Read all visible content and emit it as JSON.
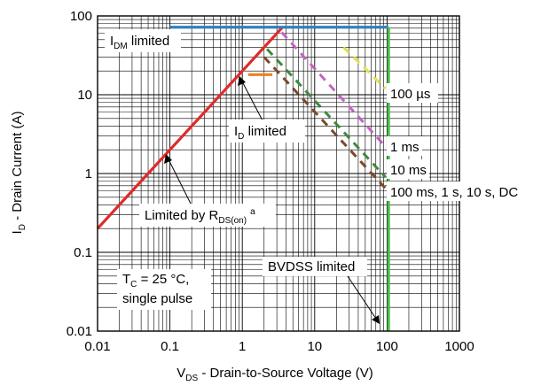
{
  "chart_data": {
    "type": "line",
    "x_scale": "log",
    "y_scale": "log",
    "xlim": [
      0.01,
      1000
    ],
    "ylim": [
      0.01,
      100
    ],
    "grid": true,
    "x_ticks": [
      "0.01",
      "0.1",
      "1",
      "10",
      "100",
      "1000"
    ],
    "y_ticks": [
      "100",
      "10",
      "1",
      "0.1",
      "0.01"
    ],
    "xlabel": {
      "main": "V",
      "sub": "DS",
      "rest": " - Drain-to-Source Voltage (V)"
    },
    "ylabel": {
      "main": "I",
      "sub": "D",
      "rest": " - Drain Current (A)"
    },
    "series": [
      {
        "color": "#e02a2a",
        "style": "solid",
        "x": [
          0.01,
          3.6
        ],
        "y": [
          0.2,
          72
        ]
      },
      {
        "color": "#2f7fc4",
        "style": "solid",
        "x": [
          0.1,
          105
        ],
        "y": [
          72,
          72
        ]
      },
      {
        "color": "#4cbf4c",
        "style": "solid",
        "x": [
          105,
          105
        ],
        "y": [
          72,
          0.01
        ]
      },
      {
        "color": "#f07f20",
        "style": "solid",
        "x": [
          1.2,
          2.6
        ],
        "y": [
          18,
          18
        ]
      },
      {
        "color": "#e2e04a",
        "style": "dashed",
        "x": [
          25,
          95
        ],
        "y": [
          40,
          12
        ]
      },
      {
        "color": "#c463c2",
        "style": "dashed",
        "x": [
          3.5,
          95
        ],
        "y": [
          62,
          2.2
        ]
      },
      {
        "color": "#3e8a3e",
        "style": "dashed",
        "x": [
          2.2,
          95
        ],
        "y": [
          38,
          0.9
        ]
      },
      {
        "color": "#7a4a2a",
        "style": "dashed",
        "x": [
          2.0,
          95
        ],
        "y": [
          30,
          0.65
        ]
      }
    ],
    "annotations": {
      "idm": {
        "main": "I",
        "sub": "DM",
        "rest": " limited"
      },
      "id": {
        "main": "I",
        "sub": "D",
        "rest": " limited"
      },
      "rds": {
        "main": "Limited by R",
        "sub": "DS(on)",
        "sup": "a"
      },
      "tc": {
        "main": "T",
        "sub": "C",
        "rest": " = 25 °C,",
        "line2": "single pulse"
      },
      "bvdss": "BVDSS limited",
      "us100": "100 µs",
      "ms1": "1 ms",
      "ms10": "10 ms",
      "ms100": "100 ms, 1 s, 10 s, DC"
    }
  }
}
